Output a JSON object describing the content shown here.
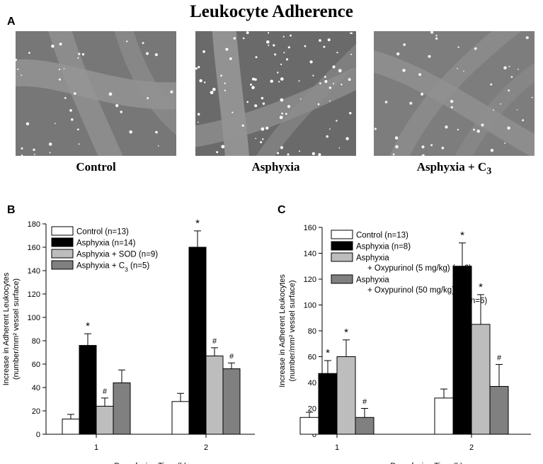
{
  "figure_title": "Leukocyte Adherence",
  "panel_a": {
    "letter": "A",
    "images": [
      {
        "caption": "Control",
        "sub": ""
      },
      {
        "caption": "Asphyxia",
        "sub": ""
      },
      {
        "caption": "Asphyxia + C",
        "sub": "3"
      }
    ]
  },
  "chart_data": [
    {
      "letter": "B",
      "type": "bar",
      "title": "",
      "xlabel": "Reperfusion Time (h)",
      "ylabel": "Increase in Adherent Leukocytes",
      "ylabel_line2": "(number/mm² vessel surface)",
      "categories": [
        "1",
        "2"
      ],
      "ylim": [
        0,
        180
      ],
      "yticks": [
        0,
        20,
        40,
        60,
        80,
        100,
        120,
        140,
        160,
        180
      ],
      "legend_placement": "top-left",
      "series": [
        {
          "name": "Control (n=13)",
          "color": "#ffffff",
          "values": [
            13,
            28
          ],
          "errors": [
            4,
            7
          ],
          "markers": [
            "",
            ""
          ]
        },
        {
          "name": "Asphyxia (n=14)",
          "color": "#000000",
          "values": [
            76,
            160
          ],
          "errors": [
            10,
            14
          ],
          "markers": [
            "*",
            "*"
          ]
        },
        {
          "name": "Asphyxia + SOD (n=9)",
          "color": "#bdbdbd",
          "values": [
            24,
            67
          ],
          "errors": [
            7,
            7
          ],
          "markers": [
            "#",
            "#"
          ]
        },
        {
          "name": "Asphyxia + C",
          "name_sub": "3",
          "name_suffix": " (n=5)",
          "color": "#808080",
          "values": [
            44,
            56
          ],
          "errors": [
            11,
            5
          ],
          "markers": [
            "",
            "#"
          ]
        }
      ]
    },
    {
      "letter": "C",
      "type": "bar",
      "title": "",
      "xlabel": "Reperfusion Time (h)",
      "ylabel": "Increase in Adherent Leukocytes",
      "ylabel_line2": "(number/mm² vessel surface)",
      "categories": [
        "1",
        "2"
      ],
      "ylim": [
        0,
        160
      ],
      "yticks": [
        0,
        20,
        40,
        60,
        80,
        100,
        120,
        140,
        160
      ],
      "legend_placement": "top-left",
      "series": [
        {
          "name": "Control (n=13)",
          "color": "#ffffff",
          "values": [
            13,
            28
          ],
          "errors": [
            4,
            7
          ],
          "markers": [
            "",
            ""
          ]
        },
        {
          "name": "Asphyxia (n=8)",
          "color": "#000000",
          "values": [
            47,
            130
          ],
          "errors": [
            10,
            18
          ],
          "markers": [
            "*",
            "*"
          ]
        },
        {
          "name": "Asphyxia",
          "name_line2": "+ Oxypurinol (5 mg/kg) (n=6)",
          "color": "#bdbdbd",
          "values": [
            60,
            85
          ],
          "errors": [
            13,
            23
          ],
          "markers": [
            "*",
            "*"
          ]
        },
        {
          "name": "Asphyxia",
          "name_line2": "+ Oxypurinol (50 mg/kg)",
          "name_line3": "(n=6)",
          "color": "#808080",
          "values": [
            13,
            37
          ],
          "errors": [
            7,
            17
          ],
          "markers": [
            "#",
            "#"
          ]
        }
      ]
    }
  ]
}
